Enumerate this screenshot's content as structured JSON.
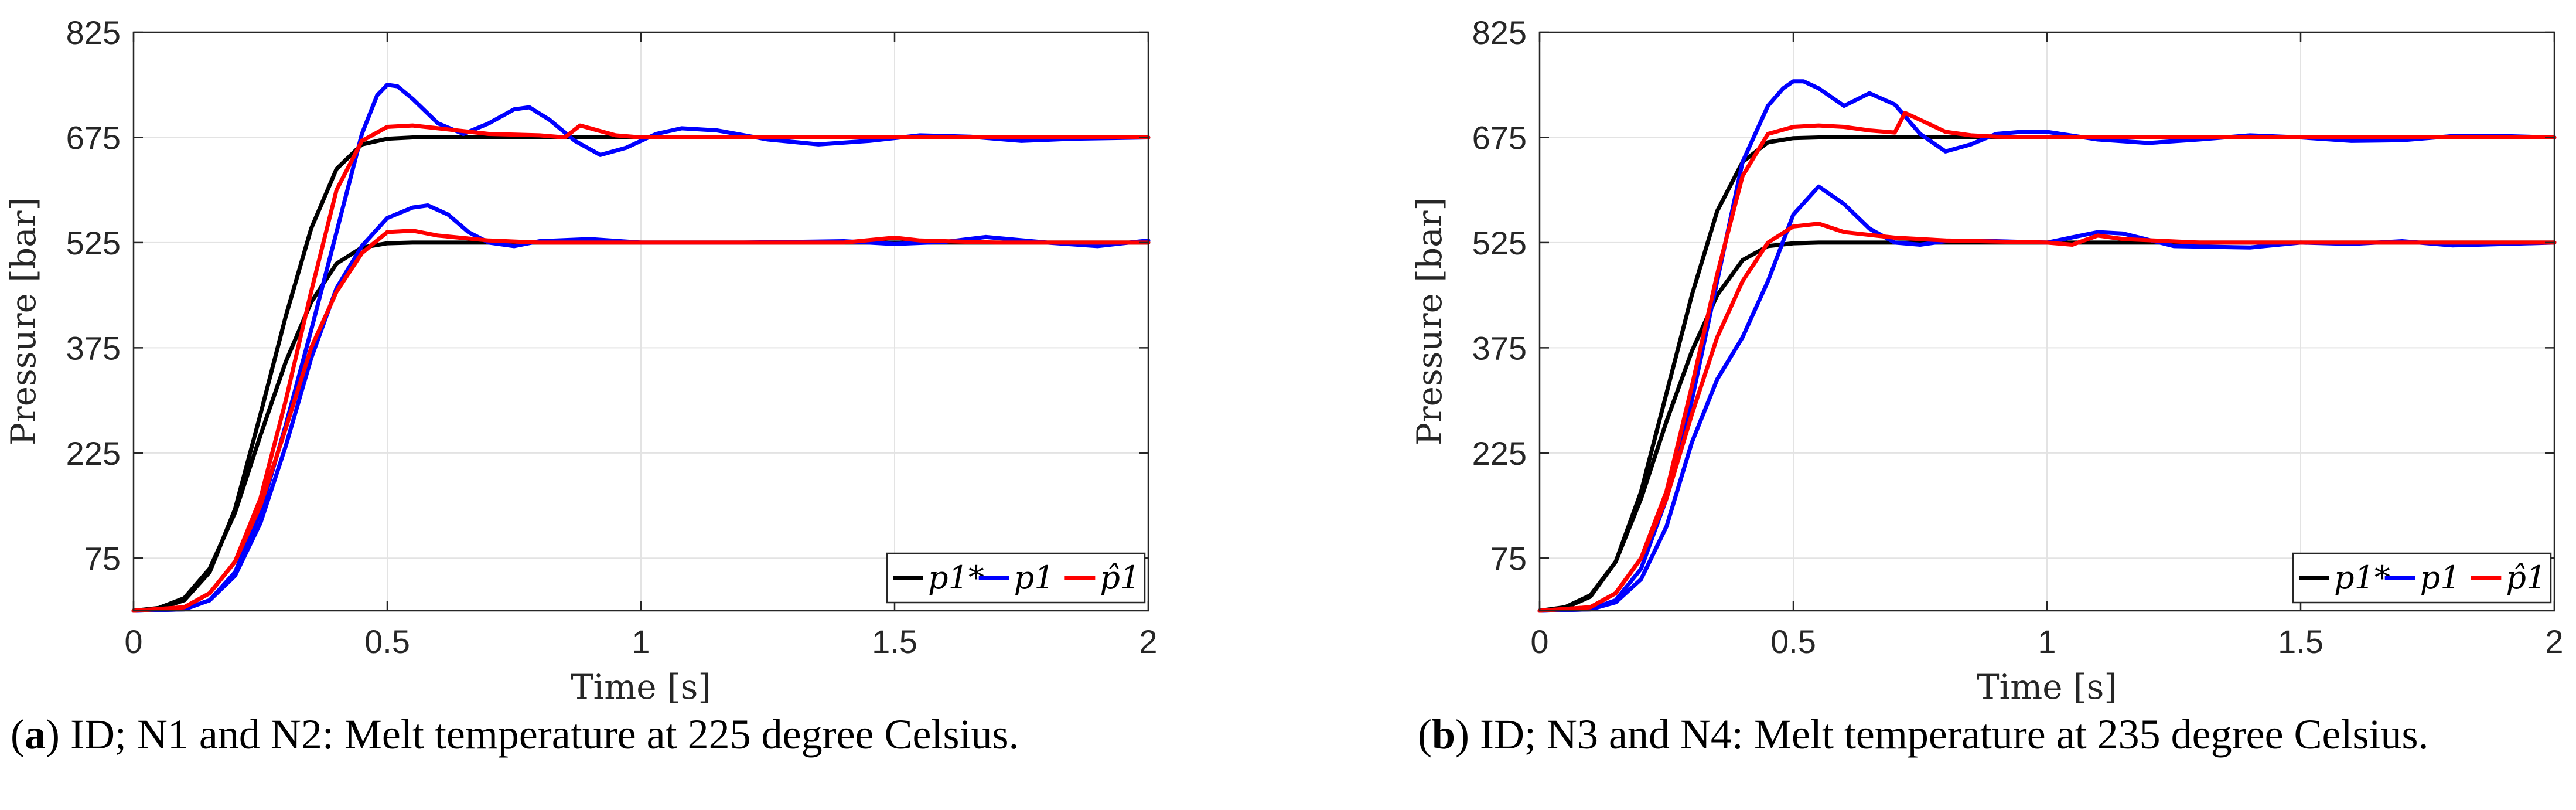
{
  "chart_data": [
    {
      "type": "line",
      "id": "a",
      "caption_label": "a",
      "caption_text": ") ID; N1 and N2: Melt temperature at 225 degree Celsius.",
      "xlabel": "Time [s]",
      "ylabel": "Pressure [bar]",
      "xlim": [
        0,
        2
      ],
      "ylim": [
        0,
        825
      ],
      "xticks": [
        0,
        0.5,
        1,
        1.5,
        2
      ],
      "xtick_labels": [
        "0",
        "0.5",
        "1",
        "1.5",
        "2"
      ],
      "yticks": [
        75,
        225,
        375,
        525,
        675,
        825
      ],
      "ytick_labels": [
        "75",
        "225",
        "375",
        "525",
        "675",
        "825"
      ],
      "grid": true,
      "legend": [
        "p1*",
        "p1",
        "p̂1"
      ],
      "legend_position": "bottom-right",
      "series": [
        {
          "name": "p1* (N1)",
          "legend": "p1*",
          "color": "#000000",
          "x": [
            0,
            0.05,
            0.1,
            0.15,
            0.2,
            0.25,
            0.3,
            0.35,
            0.4,
            0.45,
            0.5,
            0.55,
            0.6,
            0.8,
            1,
            1.5,
            2
          ],
          "y": [
            0,
            3,
            15,
            55,
            145,
            280,
            420,
            545,
            630,
            665,
            673,
            675,
            675,
            675,
            675,
            675,
            675
          ]
        },
        {
          "name": "p1* (N2)",
          "legend": "p1*",
          "color": "#000000",
          "x": [
            0,
            0.05,
            0.1,
            0.15,
            0.2,
            0.25,
            0.3,
            0.35,
            0.4,
            0.45,
            0.5,
            0.55,
            0.6,
            0.8,
            1,
            1.5,
            2
          ],
          "y": [
            0,
            4,
            18,
            60,
            140,
            250,
            355,
            440,
            495,
            518,
            524,
            525,
            525,
            525,
            525,
            525,
            525
          ]
        },
        {
          "name": "p1 (N1)",
          "legend": "p1",
          "color": "#0000ff",
          "x": [
            0,
            0.1,
            0.15,
            0.2,
            0.25,
            0.3,
            0.35,
            0.4,
            0.45,
            0.48,
            0.5,
            0.52,
            0.55,
            0.6,
            0.65,
            0.7,
            0.75,
            0.78,
            0.82,
            0.87,
            0.92,
            0.97,
            1.03,
            1.08,
            1.15,
            1.25,
            1.35,
            1.45,
            1.55,
            1.65,
            1.75,
            1.85,
            2
          ],
          "y": [
            0,
            2,
            15,
            55,
            140,
            265,
            400,
            540,
            680,
            735,
            750,
            748,
            730,
            695,
            680,
            695,
            715,
            718,
            700,
            670,
            650,
            660,
            680,
            688,
            685,
            672,
            665,
            670,
            678,
            676,
            670,
            673,
            675
          ]
        },
        {
          "name": "p1 (N2)",
          "legend": "p1",
          "color": "#0000ff",
          "x": [
            0,
            0.1,
            0.15,
            0.2,
            0.25,
            0.3,
            0.35,
            0.4,
            0.45,
            0.5,
            0.55,
            0.58,
            0.62,
            0.66,
            0.7,
            0.75,
            0.8,
            0.9,
            1,
            1.2,
            1.4,
            1.5,
            1.6,
            1.68,
            1.8,
            1.9,
            2
          ],
          "y": [
            0,
            2,
            15,
            50,
            125,
            235,
            360,
            460,
            520,
            560,
            575,
            578,
            565,
            540,
            525,
            520,
            527,
            530,
            525,
            525,
            527,
            523,
            526,
            533,
            525,
            520,
            528
          ]
        },
        {
          "name": "p̂1 (N1)",
          "legend": "p̂1",
          "color": "#ff0000",
          "x": [
            0,
            0.1,
            0.15,
            0.2,
            0.25,
            0.3,
            0.35,
            0.4,
            0.45,
            0.5,
            0.55,
            0.6,
            0.7,
            0.8,
            0.85,
            0.88,
            0.9,
            0.95,
            1,
            1.1,
            1.5,
            2
          ],
          "y": [
            0,
            5,
            25,
            70,
            160,
            300,
            455,
            600,
            670,
            690,
            692,
            688,
            680,
            678,
            675,
            692,
            688,
            678,
            675,
            675,
            675,
            675
          ]
        },
        {
          "name": "p̂1 (N2)",
          "legend": "p̂1",
          "color": "#ff0000",
          "x": [
            0,
            0.1,
            0.15,
            0.2,
            0.25,
            0.3,
            0.35,
            0.4,
            0.45,
            0.5,
            0.55,
            0.6,
            0.7,
            0.8,
            1,
            1.4,
            1.5,
            1.55,
            1.7,
            2
          ],
          "y": [
            0,
            5,
            25,
            70,
            150,
            260,
            375,
            455,
            510,
            540,
            542,
            535,
            528,
            525,
            525,
            525,
            532,
            528,
            525,
            525
          ]
        }
      ]
    },
    {
      "type": "line",
      "id": "b",
      "caption_label": "b",
      "caption_text": ") ID; N3 and N4: Melt temperature at 235 degree Celsius.",
      "xlabel": "Time [s]",
      "ylabel": "Pressure [bar]",
      "xlim": [
        0,
        2
      ],
      "ylim": [
        0,
        825
      ],
      "xticks": [
        0,
        0.5,
        1,
        1.5,
        2
      ],
      "xtick_labels": [
        "0",
        "0.5",
        "1",
        "1.5",
        "2"
      ],
      "yticks": [
        75,
        225,
        375,
        525,
        675,
        825
      ],
      "ytick_labels": [
        "75",
        "225",
        "375",
        "525",
        "675",
        "825"
      ],
      "grid": true,
      "legend": [
        "p1*",
        "p1",
        "p̂1"
      ],
      "legend_position": "bottom-right",
      "series": [
        {
          "name": "p1* (N3)",
          "legend": "p1*",
          "color": "#000000",
          "x": [
            0,
            0.05,
            0.1,
            0.15,
            0.2,
            0.25,
            0.3,
            0.35,
            0.4,
            0.45,
            0.5,
            0.55,
            0.6,
            0.8,
            1,
            1.5,
            2
          ],
          "y": [
            0,
            4,
            20,
            70,
            170,
            310,
            450,
            570,
            640,
            668,
            674,
            675,
            675,
            675,
            675,
            675,
            675
          ]
        },
        {
          "name": "p1* (N4)",
          "legend": "p1*",
          "color": "#000000",
          "x": [
            0,
            0.05,
            0.1,
            0.15,
            0.2,
            0.25,
            0.3,
            0.35,
            0.4,
            0.45,
            0.5,
            0.55,
            0.6,
            0.8,
            1,
            1.5,
            2
          ],
          "y": [
            0,
            5,
            22,
            70,
            160,
            270,
            370,
            450,
            500,
            520,
            524,
            525,
            525,
            525,
            525,
            525,
            525
          ]
        },
        {
          "name": "p1 (N3)",
          "legend": "p1",
          "color": "#0000ff",
          "x": [
            0,
            0.1,
            0.15,
            0.2,
            0.25,
            0.3,
            0.35,
            0.4,
            0.45,
            0.48,
            0.5,
            0.52,
            0.55,
            0.6,
            0.65,
            0.7,
            0.75,
            0.8,
            0.85,
            0.9,
            0.95,
            1,
            1.1,
            1.2,
            1.3,
            1.4,
            1.5,
            1.6,
            1.7,
            1.8,
            1.9,
            2
          ],
          "y": [
            0,
            2,
            15,
            60,
            160,
            300,
            470,
            640,
            720,
            745,
            755,
            755,
            745,
            720,
            738,
            722,
            680,
            655,
            665,
            680,
            683,
            683,
            672,
            667,
            672,
            678,
            675,
            670,
            671,
            677,
            677,
            675
          ]
        },
        {
          "name": "p1 (N4)",
          "legend": "p1",
          "color": "#0000ff",
          "x": [
            0,
            0.1,
            0.15,
            0.2,
            0.25,
            0.3,
            0.35,
            0.4,
            0.45,
            0.5,
            0.55,
            0.6,
            0.65,
            0.7,
            0.75,
            0.8,
            0.9,
            1,
            1.1,
            1.15,
            1.25,
            1.4,
            1.5,
            1.6,
            1.7,
            1.8,
            2
          ],
          "y": [
            0,
            2,
            12,
            45,
            120,
            240,
            330,
            390,
            470,
            565,
            605,
            580,
            545,
            525,
            522,
            527,
            527,
            525,
            540,
            538,
            520,
            518,
            525,
            523,
            527,
            521,
            525
          ]
        },
        {
          "name": "p̂1 (N3)",
          "legend": "p̂1",
          "color": "#ff0000",
          "x": [
            0,
            0.1,
            0.15,
            0.2,
            0.25,
            0.3,
            0.35,
            0.4,
            0.45,
            0.5,
            0.55,
            0.6,
            0.65,
            0.7,
            0.72,
            0.75,
            0.8,
            0.85,
            0.9,
            1,
            1.5,
            2
          ],
          "y": [
            0,
            5,
            25,
            75,
            170,
            320,
            480,
            620,
            680,
            690,
            692,
            690,
            685,
            682,
            710,
            700,
            683,
            678,
            676,
            675,
            675,
            675
          ]
        },
        {
          "name": "p̂1 (N4)",
          "legend": "p̂1",
          "color": "#ff0000",
          "x": [
            0,
            0.1,
            0.15,
            0.2,
            0.25,
            0.3,
            0.35,
            0.4,
            0.45,
            0.5,
            0.55,
            0.6,
            0.7,
            0.8,
            1,
            1.05,
            1.1,
            1.15,
            1.3,
            2
          ],
          "y": [
            0,
            5,
            25,
            75,
            160,
            280,
            390,
            470,
            525,
            548,
            552,
            540,
            532,
            528,
            525,
            522,
            535,
            530,
            525,
            525
          ]
        }
      ]
    }
  ]
}
